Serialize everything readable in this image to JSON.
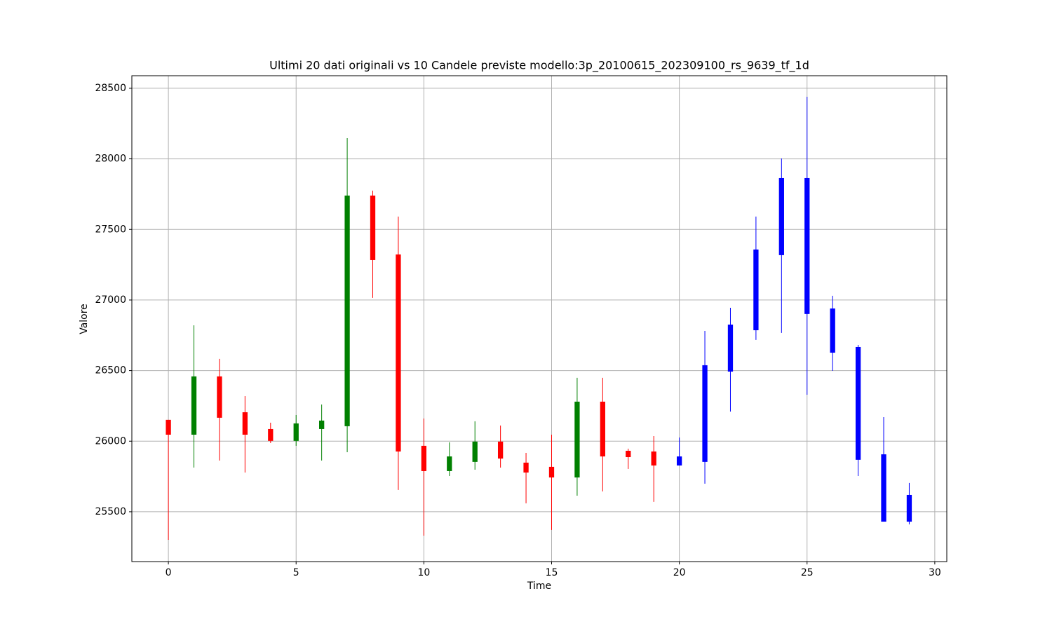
{
  "chart_data": {
    "type": "candlestick",
    "title": "Ultimi 20 dati originali vs 10 Candele previste modello:3p_20100615_202309100_rs_9639_tf_1d",
    "x_label": "Time",
    "y_label": "Valore",
    "xlim": [
      -1.43,
      30.47
    ],
    "ylim": [
      25147,
      28589
    ],
    "xticks": [
      0,
      5,
      10,
      15,
      20,
      25,
      30
    ],
    "yticks": [
      25500,
      26000,
      26500,
      27000,
      27500,
      28000,
      28500
    ],
    "grid": true,
    "series": [
      {
        "up_color": "green",
        "down_color": "red",
        "x": [
          0,
          1,
          2,
          3,
          4,
          5,
          6,
          7,
          8,
          9,
          10,
          11,
          12,
          13,
          14,
          15,
          16,
          17,
          18,
          19
        ],
        "open": [
          26151,
          26046,
          26459,
          26205,
          26086,
          26002,
          26086,
          26106,
          27740,
          27323,
          25967,
          25788,
          25853,
          25997,
          25848,
          25818,
          25743,
          26280,
          25932,
          25927
        ],
        "high": [
          26151,
          26821,
          26583,
          26319,
          26131,
          26185,
          26260,
          28147,
          27775,
          27591,
          26161,
          25992,
          26141,
          26111,
          25917,
          26046,
          26449,
          26449,
          25947,
          26036
        ],
        "low": [
          25301,
          25813,
          25863,
          25778,
          25987,
          25967,
          25863,
          25922,
          27015,
          25654,
          25331,
          25753,
          25798,
          25813,
          25560,
          25371,
          25614,
          25644,
          25803,
          25570
        ],
        "close": [
          26046,
          26459,
          26166,
          26046,
          26002,
          26126,
          26146,
          27740,
          27283,
          25927,
          25788,
          25892,
          25997,
          25877,
          25778,
          25743,
          26280,
          25892,
          25887,
          25828
        ]
      },
      {
        "color": "blue",
        "x": [
          20,
          21,
          22,
          23,
          24,
          25,
          26,
          27,
          28,
          29
        ],
        "open": [
          25828,
          25853,
          26493,
          26786,
          27318,
          27864,
          26940,
          26667,
          25907,
          25619
        ],
        "high": [
          26026,
          26781,
          26945,
          27591,
          28003,
          28440,
          27030,
          26682,
          26170,
          25704
        ],
        "low": [
          25828,
          25699,
          26210,
          26717,
          26767,
          26329,
          26498,
          25753,
          25430,
          25411
        ],
        "close": [
          25892,
          26538,
          26826,
          27358,
          27864,
          26901,
          26627,
          25868,
          25430,
          25430
        ]
      }
    ]
  }
}
